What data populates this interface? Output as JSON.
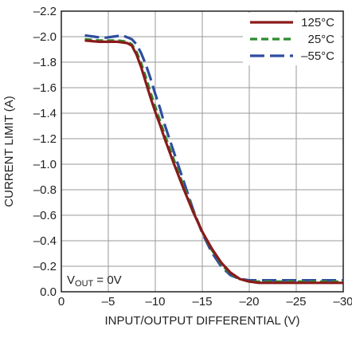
{
  "chart_data": {
    "type": "line",
    "xlabel": "INPUT/OUTPUT DIFFERENTIAL (V)",
    "ylabel": "CURRENT LIMIT (A)",
    "xlim": [
      0,
      -30
    ],
    "ylim": [
      0,
      -2.2
    ],
    "x_ticks": [
      0,
      -5,
      -10,
      -15,
      -20,
      -25,
      -30
    ],
    "x_tick_labels": [
      "0",
      "–5",
      "–10",
      "–15",
      "–20",
      "–25",
      "–30"
    ],
    "y_ticks": [
      0,
      -0.2,
      -0.4,
      -0.6,
      -0.8,
      -1.0,
      -1.2,
      -1.4,
      -1.6,
      -1.8,
      -2.0,
      -2.2
    ],
    "y_tick_labels": [
      "0.0",
      "–0.2",
      "–0.4",
      "–0.6",
      "–0.8",
      "–1.0",
      "–1.2",
      "–1.4",
      "–1.6",
      "–1.8",
      "–2.0",
      "–2.2"
    ],
    "grid": true,
    "legend_position": "top-right",
    "annotation": {
      "main": "V",
      "sub": "OUT",
      "rest": " = 0V"
    },
    "series": [
      {
        "name": "125°C",
        "color": "#8b1a1a",
        "dash": "solid",
        "x": [
          -2.5,
          -4,
          -5,
          -6,
          -7,
          -7.5,
          -8,
          -8.5,
          -9,
          -9.5,
          -10,
          -10.5,
          -11,
          -12,
          -13,
          -14,
          -15,
          -16,
          -17,
          -18,
          -19,
          -20,
          -21,
          -22,
          -25,
          -30
        ],
        "y": [
          -1.97,
          -1.96,
          -1.96,
          -1.96,
          -1.95,
          -1.93,
          -1.86,
          -1.76,
          -1.64,
          -1.52,
          -1.41,
          -1.31,
          -1.2,
          -1.0,
          -0.81,
          -0.63,
          -0.47,
          -0.34,
          -0.23,
          -0.15,
          -0.1,
          -0.08,
          -0.07,
          -0.07,
          -0.07,
          -0.07
        ]
      },
      {
        "name": "25°C",
        "color": "#2e8b2e",
        "dash": "dashed",
        "x": [
          -2.5,
          -4,
          -5,
          -6,
          -7,
          -7.5,
          -8,
          -8.5,
          -9,
          -9.5,
          -10,
          -10.5,
          -11,
          -12,
          -13,
          -14,
          -15,
          -16,
          -17,
          -18,
          -19,
          -20,
          -21,
          -22,
          -25,
          -30
        ],
        "y": [
          -1.98,
          -1.97,
          -1.97,
          -1.97,
          -1.96,
          -1.94,
          -1.88,
          -1.79,
          -1.68,
          -1.56,
          -1.45,
          -1.34,
          -1.23,
          -1.03,
          -0.83,
          -0.64,
          -0.47,
          -0.33,
          -0.22,
          -0.14,
          -0.1,
          -0.08,
          -0.08,
          -0.08,
          -0.08,
          -0.08
        ]
      },
      {
        "name": "–55°C",
        "color": "#2e4d9e",
        "dash": "long-dash",
        "x": [
          -2.5,
          -3.5,
          -4.5,
          -5.5,
          -6.5,
          -7.5,
          -8,
          -8.5,
          -9,
          -9.5,
          -10,
          -10.5,
          -11,
          -12,
          -13,
          -14,
          -15,
          -16,
          -17,
          -18,
          -19,
          -20,
          -21,
          -22,
          -25,
          -30
        ],
        "y": [
          -2.01,
          -2.0,
          -1.99,
          -2.0,
          -2.01,
          -1.98,
          -1.94,
          -1.87,
          -1.78,
          -1.67,
          -1.55,
          -1.44,
          -1.31,
          -1.09,
          -0.87,
          -0.65,
          -0.46,
          -0.31,
          -0.2,
          -0.13,
          -0.1,
          -0.09,
          -0.09,
          -0.09,
          -0.09,
          -0.09
        ]
      }
    ]
  }
}
